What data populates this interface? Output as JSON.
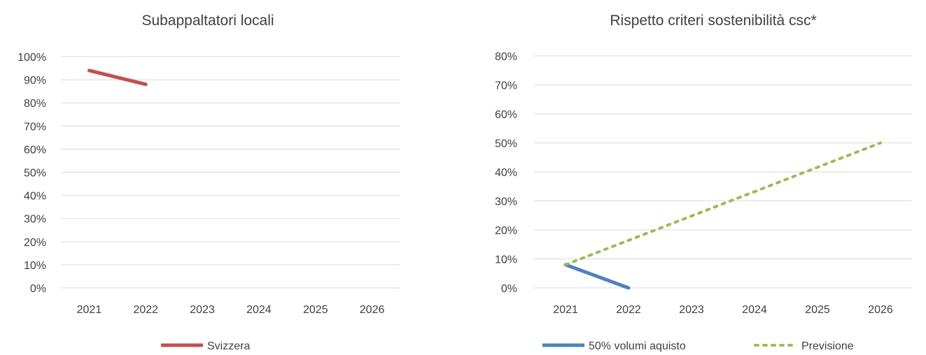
{
  "chart_data": [
    {
      "type": "line",
      "title": "Subappaltatori locali",
      "x": [
        "2021",
        "2022",
        "2023",
        "2024",
        "2025",
        "2026"
      ],
      "yticks": [
        "0%",
        "10%",
        "20%",
        "30%",
        "40%",
        "50%",
        "60%",
        "70%",
        "80%",
        "90%",
        "100%"
      ],
      "ylim": [
        0,
        100
      ],
      "grid": true,
      "legend_position": "bottom",
      "series": [
        {
          "name": "Svizzera",
          "color": "#c0504d",
          "style": "solid",
          "values": [
            94,
            88,
            null,
            null,
            null,
            null
          ]
        }
      ]
    },
    {
      "type": "line",
      "title": "Rispetto criteri sostenibilità csc*",
      "x": [
        "2021",
        "2022",
        "2023",
        "2024",
        "2025",
        "2026"
      ],
      "yticks": [
        "0%",
        "10%",
        "20%",
        "30%",
        "40%",
        "50%",
        "60%",
        "70%",
        "80%"
      ],
      "ylim": [
        0,
        80
      ],
      "grid": true,
      "legend_position": "bottom",
      "series": [
        {
          "name": "50% volumi aquisto",
          "color": "#4f81bd",
          "style": "solid",
          "values": [
            8,
            0,
            null,
            null,
            null,
            null
          ]
        },
        {
          "name": "Previsione",
          "color": "#9bbb59",
          "style": "dotted",
          "values": [
            8,
            16.4,
            24.8,
            33.2,
            41.6,
            50
          ]
        }
      ]
    }
  ]
}
